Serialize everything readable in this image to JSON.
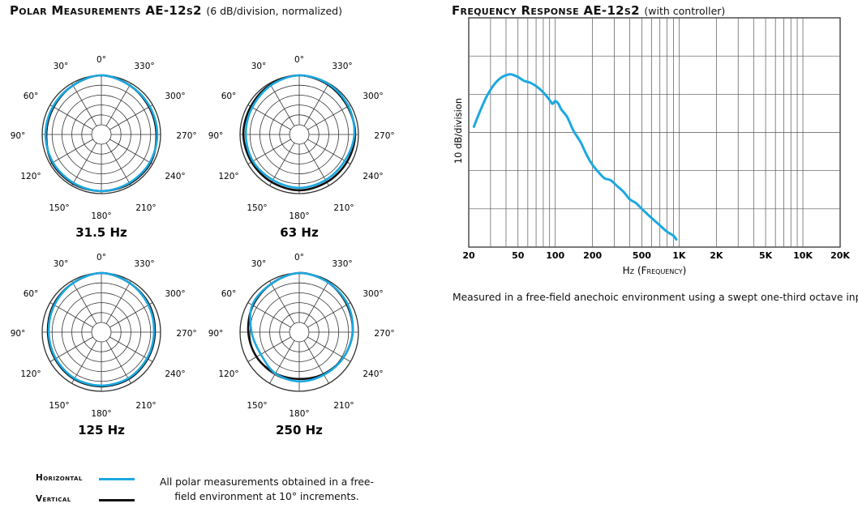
{
  "polar": {
    "title": "Polar Measurements AE-12s2",
    "subtitle": "(6 dB/division, normalized)",
    "note_line1": "All polar measurements obtained in a free-",
    "note_line2": "field environment at 10° increments.",
    "angle_labels": {
      "a0": "0°",
      "a30": "30°",
      "a330": "330°",
      "a60": "60°",
      "a300": "300°",
      "a90": "90°",
      "a270": "270°",
      "a120": "120°",
      "a240": "240°",
      "a150": "150°",
      "a210": "210°",
      "a180": "180°"
    },
    "legend": {
      "horizontal_label": "Horizontal",
      "vertical_label": "Vertical",
      "horizontal_color": "#1ba8e0",
      "vertical_color": "#111111"
    }
  },
  "frequency_response": {
    "title": "Frequency Response AE-12s2",
    "subtitle": "(with controller)",
    "note": "Measured in a free-field anechoic environment using a swept one-third octave input."
  },
  "chart_data": [
    {
      "type": "line",
      "title": "Frequency Response AE-12s2",
      "subtitle": "(with controller)",
      "xlabel": "Hz (Frequency)",
      "ylabel": "10 dB/division",
      "x_scale": "log",
      "xlim": [
        20,
        20000
      ],
      "ylim": [
        0,
        6
      ],
      "x_tick_labels": [
        "20",
        "50",
        "100",
        "200",
        "500",
        "1K",
        "2K",
        "5K",
        "10K",
        "20K"
      ],
      "x_tick_values": [
        20,
        50,
        100,
        200,
        500,
        1000,
        2000,
        5000,
        10000,
        20000
      ],
      "grid": true,
      "series": [
        {
          "color": "#1ba8e0",
          "x": [
            22,
            25,
            28,
            32,
            36,
            40,
            44,
            50,
            56,
            63,
            71,
            80,
            90,
            95,
            100,
            106,
            112,
            125,
            140,
            160,
            180,
            200,
            225,
            250,
            280,
            315,
            355,
            400,
            450,
            500,
            560,
            630,
            710,
            800,
            900,
            950
          ],
          "y": [
            3.15,
            3.6,
            3.95,
            4.25,
            4.42,
            4.5,
            4.52,
            4.45,
            4.35,
            4.3,
            4.2,
            4.05,
            3.85,
            3.75,
            3.82,
            3.75,
            3.6,
            3.4,
            3.05,
            2.75,
            2.4,
            2.15,
            1.95,
            1.8,
            1.75,
            1.6,
            1.45,
            1.25,
            1.15,
            1.0,
            0.85,
            0.7,
            0.55,
            0.4,
            0.3,
            0.2
          ]
        }
      ]
    },
    {
      "type": "polar",
      "title": "31.5 Hz",
      "scale": "6 dB/division, normalized",
      "r_max_db": 0,
      "r_min_db": -30,
      "angle_labels": [
        "0°",
        "30°",
        "60°",
        "90°",
        "120°",
        "150°",
        "180°",
        "210°",
        "240°",
        "270°",
        "300°",
        "330°"
      ],
      "series": [
        {
          "name": "Horizontal",
          "color": "#1ba8e0",
          "angles": [
            0,
            30,
            60,
            90,
            120,
            150,
            180,
            210,
            240,
            270,
            300,
            330
          ],
          "db": [
            0,
            -1.5,
            -2,
            -2,
            -2,
            -2,
            -1.5,
            -2,
            -2,
            -2,
            -2,
            -1.5
          ]
        },
        {
          "name": "Vertical",
          "color": "#111111",
          "angles": [
            0,
            30,
            60,
            90,
            120,
            150,
            180,
            210,
            240,
            270,
            300,
            330
          ],
          "db": [
            0,
            -1.5,
            -2.5,
            -2.5,
            -1.5,
            -1.5,
            -1.5,
            -1.5,
            -1.5,
            -2.5,
            -2.5,
            -1.5
          ]
        }
      ]
    },
    {
      "type": "polar",
      "title": "63 Hz",
      "scale": "6 dB/division, normalized",
      "r_max_db": 0,
      "r_min_db": -30,
      "angle_labels": [
        "0°",
        "30°",
        "60°",
        "90°",
        "120°",
        "150°",
        "180°",
        "210°",
        "240°",
        "270°",
        "300°",
        "330°"
      ],
      "series": [
        {
          "name": "Horizontal",
          "color": "#1ba8e0",
          "angles": [
            0,
            30,
            60,
            90,
            120,
            150,
            180,
            210,
            240,
            270,
            300,
            330
          ],
          "db": [
            0,
            -1.5,
            -3,
            -3.5,
            -3.5,
            -4,
            -3.5,
            -4,
            -4,
            -2.5,
            -1.5,
            -0.5
          ]
        },
        {
          "name": "Vertical",
          "color": "#111111",
          "angles": [
            0,
            30,
            60,
            90,
            120,
            150,
            180,
            210,
            240,
            270,
            300,
            330
          ],
          "db": [
            0,
            -1,
            -2,
            -2,
            -2.5,
            -2.5,
            -2,
            -2.5,
            -2.5,
            -2,
            -2,
            -1
          ]
        }
      ]
    },
    {
      "type": "polar",
      "title": "125 Hz",
      "scale": "6 dB/division, normalized",
      "r_max_db": 0,
      "r_min_db": -30,
      "angle_labels": [
        "0°",
        "30°",
        "60°",
        "90°",
        "120°",
        "150°",
        "180°",
        "210°",
        "240°",
        "270°",
        "300°",
        "330°"
      ],
      "series": [
        {
          "name": "Horizontal",
          "color": "#1ba8e0",
          "angles": [
            0,
            30,
            60,
            90,
            120,
            150,
            180,
            210,
            240,
            270,
            300,
            330
          ],
          "db": [
            0,
            -1.5,
            -3,
            -4,
            -4,
            -3.5,
            -3.5,
            -3.5,
            -4,
            -4,
            -3,
            -1.5
          ]
        },
        {
          "name": "Vertical",
          "color": "#111111",
          "angles": [
            0,
            30,
            60,
            90,
            120,
            150,
            180,
            210,
            240,
            270,
            300,
            330
          ],
          "db": [
            0,
            -1.5,
            -2.5,
            -3.5,
            -3.5,
            -3,
            -3,
            -3,
            -3.5,
            -3.5,
            -2.5,
            -1.5
          ]
        }
      ]
    },
    {
      "type": "polar",
      "title": "250 Hz",
      "scale": "6 dB/division, normalized",
      "r_max_db": 0,
      "r_min_db": -30,
      "angle_labels": [
        "0°",
        "30°",
        "60°",
        "90°",
        "120°",
        "150°",
        "180°",
        "210°",
        "240°",
        "270°",
        "300°",
        "330°"
      ],
      "series": [
        {
          "name": "Horizontal",
          "color": "#1ba8e0",
          "angles": [
            0,
            30,
            60,
            90,
            120,
            150,
            180,
            210,
            240,
            270,
            300,
            330
          ],
          "db": [
            0,
            -2,
            -3,
            -7,
            -9,
            -7,
            -6,
            -6,
            -5,
            -3.5,
            -2,
            -1
          ]
        },
        {
          "name": "Vertical",
          "color": "#111111",
          "angles": [
            0,
            30,
            60,
            90,
            120,
            150,
            180,
            210,
            240,
            270,
            300,
            330
          ],
          "db": [
            0,
            -2,
            -3.5,
            -5,
            -6,
            -7,
            -7.5,
            -6.5,
            -5,
            -3.5,
            -2.5,
            -1
          ]
        }
      ]
    }
  ]
}
